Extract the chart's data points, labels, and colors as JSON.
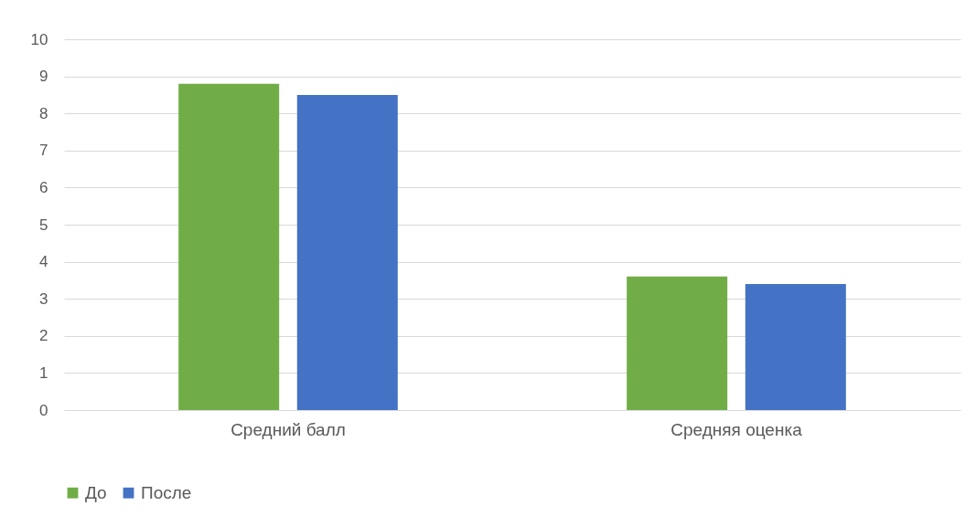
{
  "chart_data": {
    "type": "bar",
    "categories": [
      "Средний балл",
      "Средняя оценка"
    ],
    "series": [
      {
        "name": "До",
        "color": "#70ad47",
        "values": [
          8.8,
          3.6
        ]
      },
      {
        "name": "После",
        "color": "#4472c4",
        "values": [
          8.5,
          3.4
        ]
      }
    ],
    "ylim": [
      0,
      10
    ],
    "yticks": [
      0,
      1,
      2,
      3,
      4,
      5,
      6,
      7,
      8,
      9,
      10
    ],
    "grid": "y",
    "legend": "bottom"
  }
}
